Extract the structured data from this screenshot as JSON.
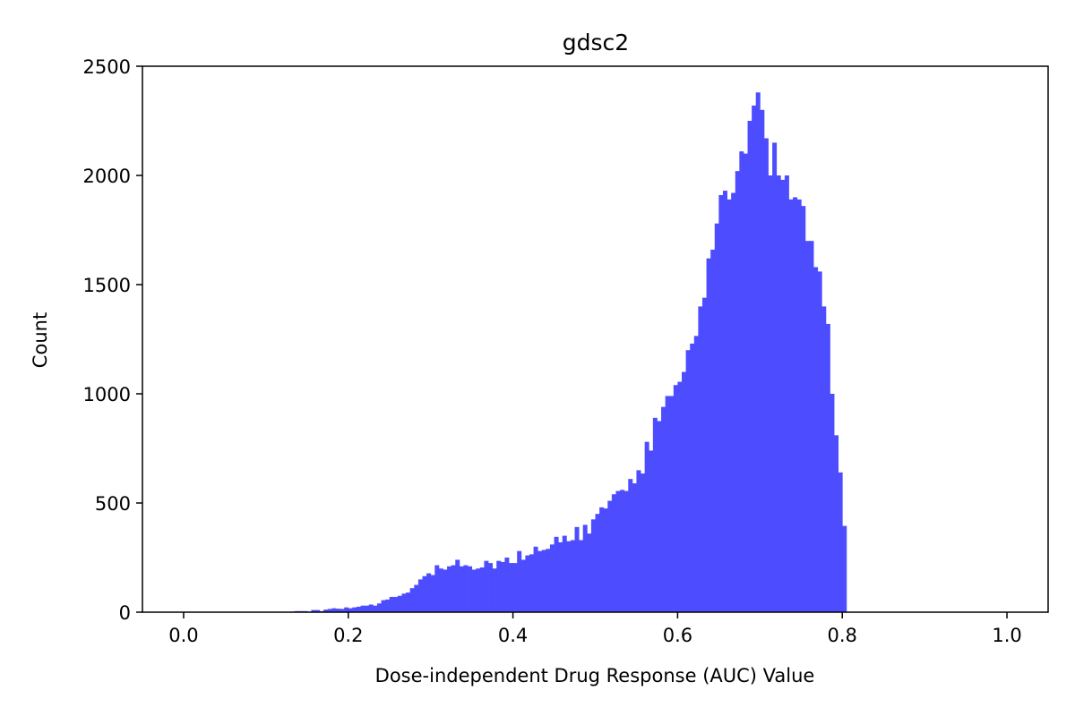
{
  "chart_data": {
    "type": "bar",
    "title": "gdsc2",
    "xlabel": "Dose-independent Drug Response (AUC) Value",
    "ylabel": "Count",
    "xlim": [
      -0.05,
      1.05
    ],
    "ylim": [
      0,
      2500
    ],
    "xticks": [
      0.0,
      0.2,
      0.4,
      0.6,
      0.8,
      1.0
    ],
    "xtick_labels": [
      "0.0",
      "0.2",
      "0.4",
      "0.6",
      "0.8",
      "1.0"
    ],
    "yticks": [
      0,
      500,
      1000,
      1500,
      2000,
      2500
    ],
    "ytick_labels": [
      "0",
      "500",
      "1000",
      "1500",
      "2000",
      "2500"
    ],
    "grid": false,
    "legend": null,
    "bar_color": "#4d4dff",
    "series": [
      {
        "bin_start": 0.0,
        "bin_width": 0.005,
        "values": [
          0,
          0,
          0,
          0,
          0,
          0,
          0,
          0,
          0,
          0,
          0,
          0,
          0,
          0,
          0,
          0,
          0,
          0,
          0,
          0,
          0,
          0,
          0,
          0,
          0,
          0,
          3,
          5,
          5,
          5,
          3,
          10,
          10,
          5,
          12,
          15,
          18,
          16,
          15,
          22,
          18,
          22,
          25,
          30,
          30,
          35,
          30,
          40,
          55,
          58,
          70,
          70,
          75,
          85,
          90,
          110,
          125,
          150,
          165,
          178,
          170,
          215,
          200,
          195,
          210,
          215,
          240,
          210,
          215,
          210,
          195,
          200,
          205,
          235,
          225,
          200,
          235,
          230,
          250,
          225,
          225,
          280,
          240,
          260,
          265,
          300,
          280,
          285,
          290,
          310,
          345,
          320,
          350,
          325,
          330,
          390,
          330,
          400,
          360,
          425,
          450,
          480,
          475,
          510,
          540,
          555,
          560,
          555,
          610,
          590,
          650,
          635,
          780,
          740,
          890,
          875,
          940,
          990,
          990,
          1040,
          1055,
          1100,
          1200,
          1230,
          1265,
          1400,
          1440,
          1620,
          1660,
          1780,
          1910,
          1930,
          1890,
          1920,
          2020,
          2110,
          2100,
          2250,
          2320,
          2380,
          2300,
          2170,
          2000,
          2150,
          2000,
          1980,
          2000,
          1890,
          1900,
          1890,
          1860,
          1700,
          1700,
          1580,
          1560,
          1400,
          1320,
          1000,
          810,
          640,
          395
        ]
      }
    ]
  }
}
